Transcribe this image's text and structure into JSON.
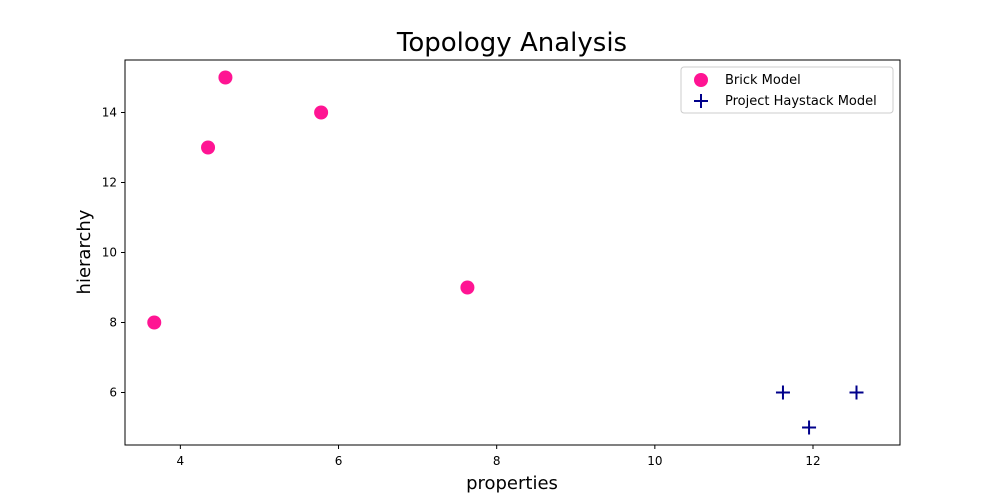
{
  "chart_data": {
    "type": "scatter",
    "title": "Topology Analysis",
    "xlabel": "properties",
    "ylabel": "hierarchy",
    "xlim": [
      3.3,
      13.1
    ],
    "ylim": [
      4.5,
      15.5
    ],
    "xticks": [
      4,
      6,
      8,
      10,
      12
    ],
    "yticks": [
      6,
      8,
      10,
      12,
      14
    ],
    "grid": false,
    "legend_position": "top-right",
    "series": [
      {
        "name": "Brick Model",
        "marker": "circle",
        "color": "#ff1493",
        "points": [
          {
            "x": 3.67,
            "y": 8
          },
          {
            "x": 4.35,
            "y": 13
          },
          {
            "x": 4.57,
            "y": 15
          },
          {
            "x": 5.78,
            "y": 14
          },
          {
            "x": 7.63,
            "y": 9
          }
        ]
      },
      {
        "name": "Project Haystack Model",
        "marker": "plus",
        "color": "#00008b",
        "points": [
          {
            "x": 11.62,
            "y": 6
          },
          {
            "x": 11.95,
            "y": 5
          },
          {
            "x": 12.55,
            "y": 6
          }
        ]
      }
    ]
  }
}
